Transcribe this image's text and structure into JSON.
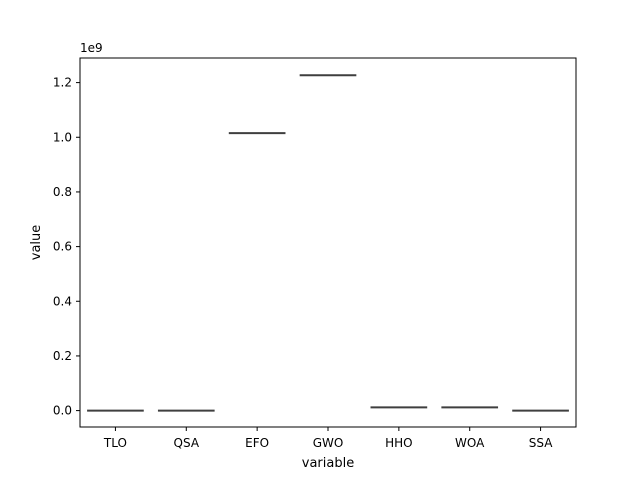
{
  "chart_data": {
    "type": "box",
    "categories": [
      "TLO",
      "QSA",
      "EFO",
      "GWO",
      "HHO",
      "WOA",
      "SSA"
    ],
    "values": [
      0.0,
      0.0,
      1015000000.0,
      1227000000.0,
      12000000.0,
      12000000.0,
      0.0
    ],
    "xlabel": "variable",
    "ylabel": "value",
    "offset_text": "1e9",
    "ylim": [
      -60000000.0,
      1290000000.0
    ],
    "yticks": [
      0,
      200000000.0,
      400000000.0,
      600000000.0,
      800000000.0,
      1000000000.0,
      1200000000.0
    ],
    "ytick_labels": [
      "0.0",
      "0.2",
      "0.4",
      "0.6",
      "0.8",
      "1.0",
      "1.2"
    ],
    "grid": false,
    "line_color": "#3f3f3f"
  }
}
